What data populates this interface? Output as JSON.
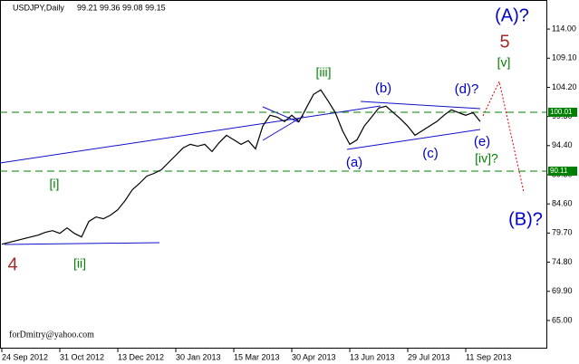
{
  "chart_data": {
    "type": "line",
    "title": "USDJPY,Daily",
    "subtitle": "99.21 99.36 99.08 99.15",
    "watermark": "forDmitry@yahoo.com",
    "categories": [
      "24 Sep 2012",
      null,
      null,
      null,
      null,
      null,
      null,
      null,
      "31 Oct 2012",
      null,
      null,
      null,
      null,
      null,
      null,
      null,
      "13 Dec 2012",
      null,
      null,
      null,
      null,
      null,
      null,
      null,
      "30 Jan 2013",
      null,
      null,
      null,
      null,
      null,
      null,
      null,
      "15 Mar 2013",
      null,
      null,
      null,
      null,
      null,
      null,
      null,
      "30 Apr 2013",
      null,
      null,
      null,
      null,
      null,
      null,
      null,
      "13 Jun 2013",
      null,
      null,
      null,
      null,
      null,
      null,
      null,
      "29 Jul 2013",
      null,
      null,
      null,
      null,
      null,
      null,
      null,
      "11 Sep 2013",
      null,
      null
    ],
    "series": [
      {
        "name": "USDJPY",
        "color": "#000000",
        "values": [
          77.82,
          78.13,
          78.43,
          78.74,
          79.04,
          79.35,
          79.81,
          80.11,
          79.65,
          80.57,
          79.65,
          79.04,
          81.64,
          82.4,
          82.1,
          82.71,
          83.62,
          85.15,
          86.98,
          88.05,
          89.27,
          89.73,
          90.34,
          91.56,
          92.78,
          94.0,
          94.61,
          94.31,
          94.61,
          93.39,
          94.92,
          96.14,
          95.38,
          94.61,
          95.22,
          93.85,
          97.67,
          99.5,
          99.19,
          98.43,
          99.5,
          98.43,
          100.72,
          103.01,
          103.77,
          101.94,
          99.96,
          96.9,
          94.61,
          95.38,
          97.67,
          99.19,
          100.72,
          101.02,
          99.96,
          98.89,
          97.67,
          96.14,
          96.9,
          97.67,
          98.43,
          99.5,
          100.41,
          99.96,
          99.5,
          99.96,
          98.43
        ]
      }
    ],
    "ylim": [
      60.27,
      118.73
    ],
    "yticks": [
      {
        "value": 65,
        "label": "65.00"
      },
      {
        "value": 69.9,
        "label": "69.90"
      },
      {
        "value": 74.8,
        "label": "74.80"
      },
      {
        "value": 79.7,
        "label": "79.70"
      },
      {
        "value": 84.6,
        "label": "84.60"
      },
      {
        "value": 89.5,
        "label": "89.50"
      },
      {
        "value": 94.4,
        "label": "94.40"
      },
      {
        "value": 99.3,
        "label": "99.30"
      },
      {
        "value": 104.2,
        "label": "104.20"
      },
      {
        "value": 109.1,
        "label": "109.10"
      },
      {
        "value": 114,
        "label": "114.00"
      }
    ],
    "levels": [
      {
        "value": 100.01,
        "color": "#008000"
      },
      {
        "value": 90.11,
        "color": "#008000"
      }
    ],
    "annotations": [
      {
        "text": "(A)?",
        "color": "#0000cc"
      },
      {
        "text": "5",
        "color": "#a52a2a"
      },
      {
        "text": "[v]",
        "color": "#008000"
      },
      {
        "text": "(d)?",
        "color": "#0000cc"
      },
      {
        "text": "(b)",
        "color": "#0000cc"
      },
      {
        "text": "[iii]",
        "color": "#008000"
      },
      {
        "text": "(a)",
        "color": "#0000cc"
      },
      {
        "text": "(c)",
        "color": "#0000cc"
      },
      {
        "text": "(e)",
        "color": "#0000cc"
      },
      {
        "text": "[iv]?",
        "color": "#008000"
      },
      {
        "text": "[i]",
        "color": "#008000"
      },
      {
        "text": "[ii]",
        "color": "#008000"
      },
      {
        "text": "4",
        "color": "#a52a2a"
      },
      {
        "text": "(B)?",
        "color": "#0000cc"
      }
    ]
  }
}
